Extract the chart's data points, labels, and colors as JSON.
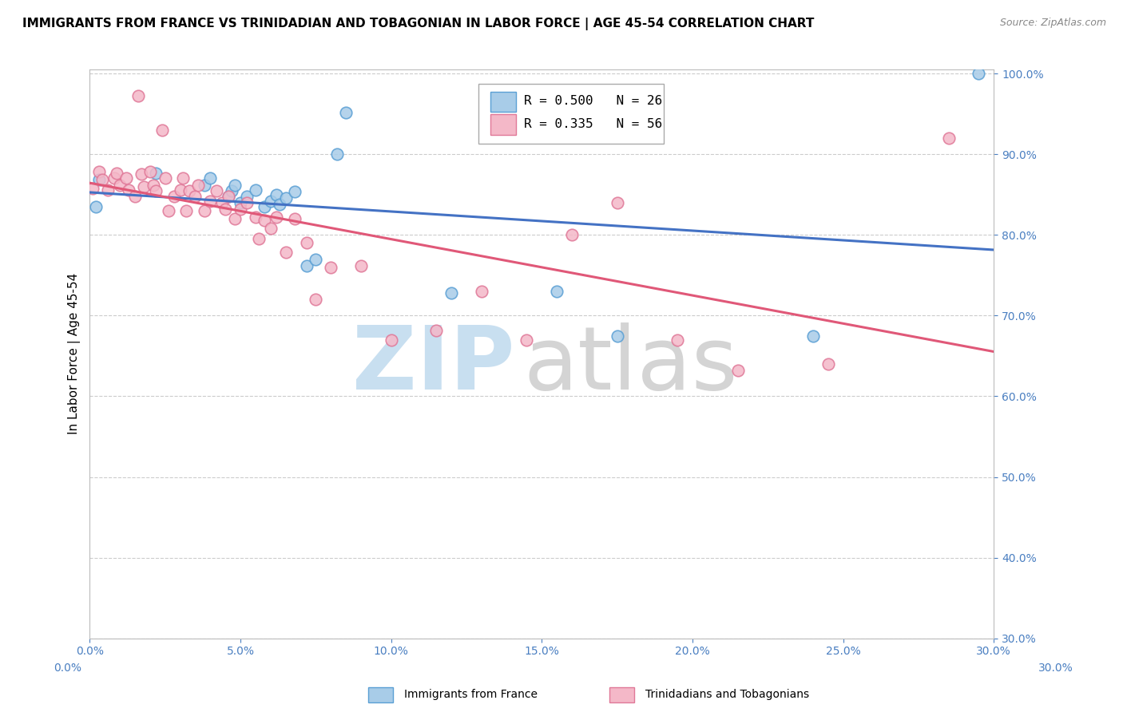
{
  "title": "IMMIGRANTS FROM FRANCE VS TRINIDADIAN AND TOBAGONIAN IN LABOR FORCE | AGE 45-54 CORRELATION CHART",
  "source": "Source: ZipAtlas.com",
  "ylabel": "In Labor Force | Age 45-54",
  "legend_blue_r": "R = 0.500",
  "legend_blue_n": "N = 26",
  "legend_pink_r": "R = 0.335",
  "legend_pink_n": "N = 56",
  "blue_color": "#a8cce8",
  "blue_edge_color": "#5a9fd4",
  "blue_line_color": "#4472c4",
  "pink_color": "#f4b8c8",
  "pink_edge_color": "#e07898",
  "pink_line_color": "#e05878",
  "tick_color": "#4a7fc1",
  "grid_color": "#cccccc",
  "background_color": "#ffffff",
  "xmin": 0.0,
  "xmax": 0.3,
  "ymin": 0.3,
  "ymax": 1.005,
  "yticks": [
    0.3,
    0.4,
    0.5,
    0.6,
    0.7,
    0.8,
    0.9,
    1.0
  ],
  "xticks": [
    0.0,
    0.05,
    0.1,
    0.15,
    0.2,
    0.25,
    0.3
  ],
  "blue_x": [
    0.002,
    0.003,
    0.022,
    0.038,
    0.04,
    0.046,
    0.047,
    0.048,
    0.05,
    0.052,
    0.055,
    0.058,
    0.06,
    0.062,
    0.063,
    0.065,
    0.068,
    0.072,
    0.075,
    0.082,
    0.085,
    0.12,
    0.155,
    0.175,
    0.24,
    0.295
  ],
  "blue_y": [
    0.835,
    0.868,
    0.876,
    0.862,
    0.87,
    0.848,
    0.855,
    0.862,
    0.84,
    0.848,
    0.856,
    0.835,
    0.842,
    0.85,
    0.838,
    0.846,
    0.854,
    0.762,
    0.77,
    0.9,
    0.952,
    0.728,
    0.73,
    0.675,
    0.675,
    1.0
  ],
  "pink_x": [
    0.001,
    0.003,
    0.004,
    0.006,
    0.008,
    0.009,
    0.01,
    0.012,
    0.013,
    0.015,
    0.016,
    0.017,
    0.018,
    0.02,
    0.021,
    0.022,
    0.024,
    0.025,
    0.026,
    0.028,
    0.03,
    0.031,
    0.032,
    0.033,
    0.035,
    0.036,
    0.038,
    0.04,
    0.042,
    0.044,
    0.045,
    0.046,
    0.048,
    0.05,
    0.052,
    0.055,
    0.056,
    0.058,
    0.06,
    0.062,
    0.065,
    0.068,
    0.072,
    0.075,
    0.08,
    0.09,
    0.1,
    0.115,
    0.13,
    0.145,
    0.16,
    0.175,
    0.195,
    0.215,
    0.245,
    0.285
  ],
  "pink_y": [
    0.858,
    0.878,
    0.868,
    0.856,
    0.87,
    0.876,
    0.862,
    0.87,
    0.856,
    0.848,
    0.972,
    0.875,
    0.86,
    0.878,
    0.862,
    0.855,
    0.93,
    0.87,
    0.83,
    0.848,
    0.856,
    0.87,
    0.83,
    0.855,
    0.848,
    0.862,
    0.83,
    0.842,
    0.855,
    0.84,
    0.832,
    0.848,
    0.82,
    0.832,
    0.84,
    0.822,
    0.795,
    0.818,
    0.808,
    0.822,
    0.778,
    0.82,
    0.79,
    0.72,
    0.76,
    0.762,
    0.67,
    0.682,
    0.73,
    0.67,
    0.8,
    0.84,
    0.67,
    0.632,
    0.64,
    0.92
  ],
  "watermark_zip_color": "#c8dff0",
  "watermark_atlas_color": "#d4d4d4"
}
